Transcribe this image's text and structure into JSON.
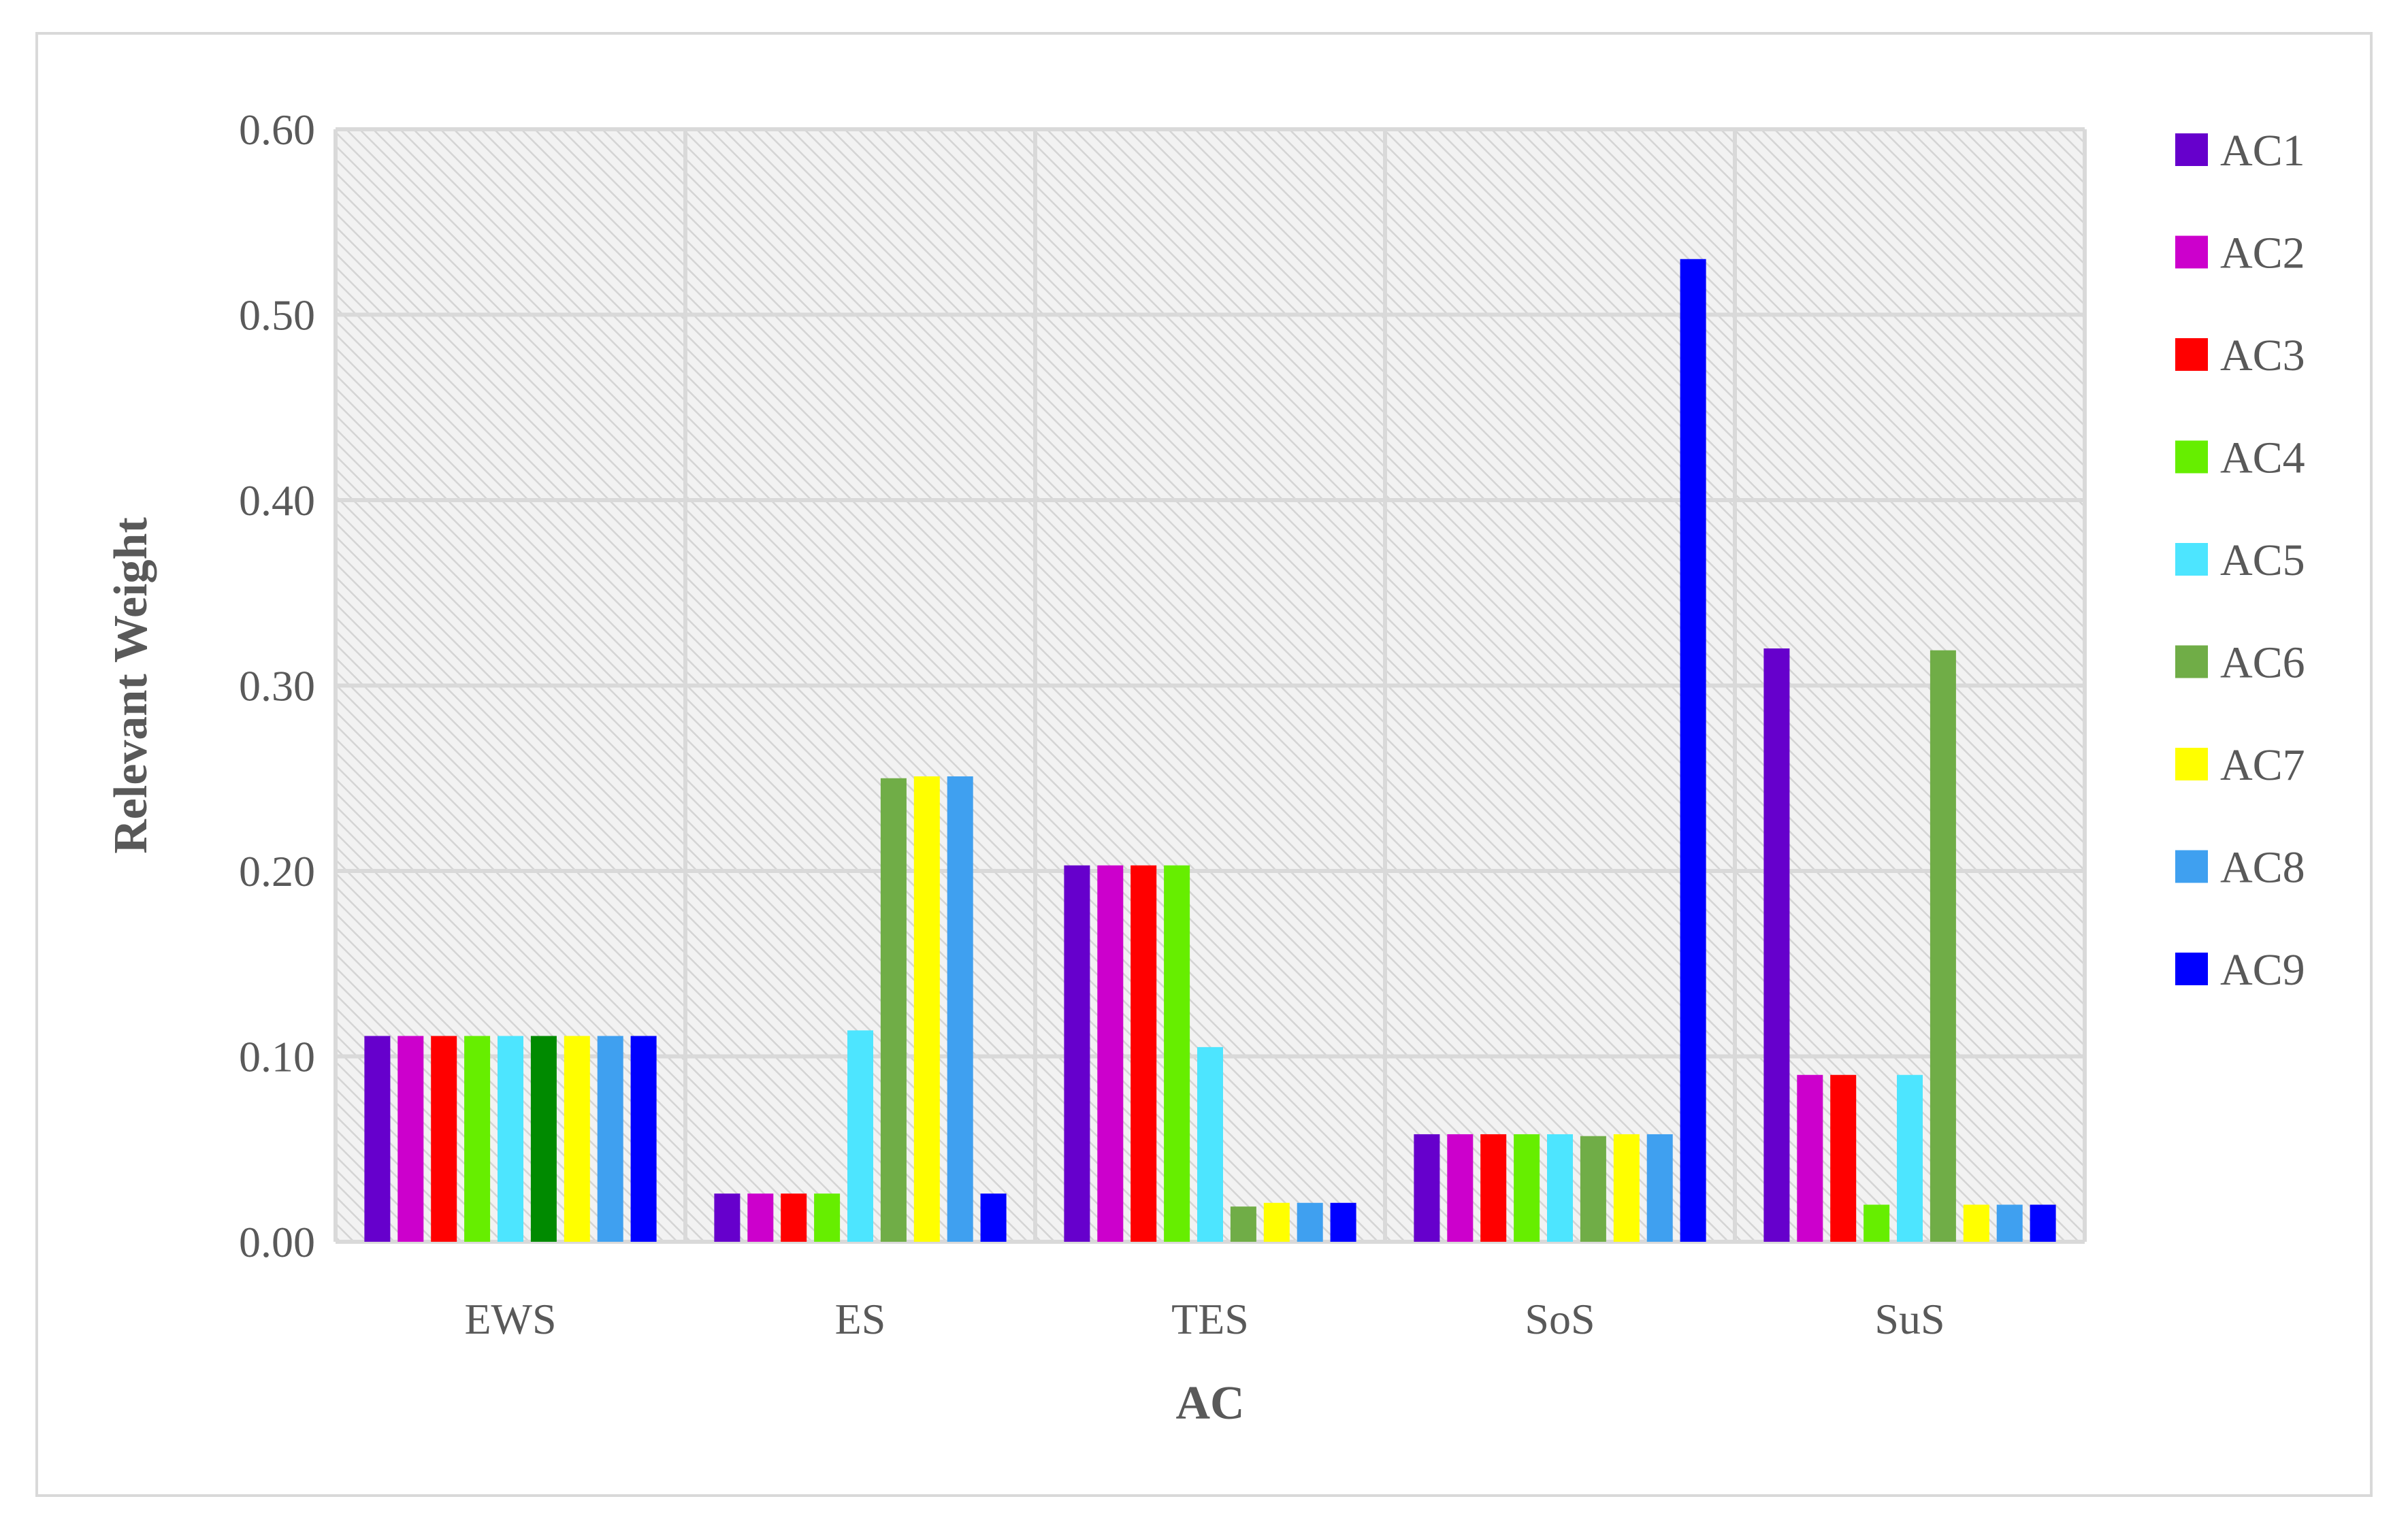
{
  "chart_data": {
    "type": "bar",
    "title": "",
    "xlabel": "AC",
    "ylabel": "Relevant Weight",
    "ylim": [
      0,
      0.6
    ],
    "yticks": [
      "0.00",
      "0.10",
      "0.20",
      "0.30",
      "0.40",
      "0.50",
      "0.60"
    ],
    "grid": true,
    "legend_position": "right",
    "categories": [
      "EWS",
      "ES",
      "TES",
      "SoS",
      "SuS"
    ],
    "series": [
      {
        "name": "AC1",
        "color": "#6600cc",
        "values": [
          0.111,
          0.026,
          0.203,
          0.058,
          0.32
        ]
      },
      {
        "name": "AC2",
        "color": "#cc00cc",
        "values": [
          0.111,
          0.026,
          0.203,
          0.058,
          0.09
        ]
      },
      {
        "name": "AC3",
        "color": "#ff0000",
        "values": [
          0.111,
          0.026,
          0.203,
          0.058,
          0.09
        ]
      },
      {
        "name": "AC4",
        "color": "#66ee00",
        "values": [
          0.111,
          0.026,
          0.203,
          0.058,
          0.02
        ]
      },
      {
        "name": "AC5",
        "color": "#4de5ff",
        "values": [
          0.111,
          0.114,
          0.105,
          0.058,
          0.09
        ]
      },
      {
        "name": "AC6",
        "color": "#70ad47",
        "values": [
          0.111,
          0.25,
          0.019,
          0.057,
          0.319
        ]
      },
      {
        "name": "AC7",
        "color": "#ffff00",
        "values": [
          0.111,
          0.251,
          0.021,
          0.058,
          0.02
        ]
      },
      {
        "name": "AC8",
        "color": "#3fa0f0",
        "values": [
          0.111,
          0.251,
          0.021,
          0.058,
          0.02
        ]
      },
      {
        "name": "AC9",
        "color": "#0000ff",
        "values": [
          0.111,
          0.026,
          0.021,
          0.53,
          0.02
        ]
      }
    ],
    "color_overrides": [
      {
        "series": 5,
        "category": 0,
        "color": "#008a00"
      }
    ]
  }
}
